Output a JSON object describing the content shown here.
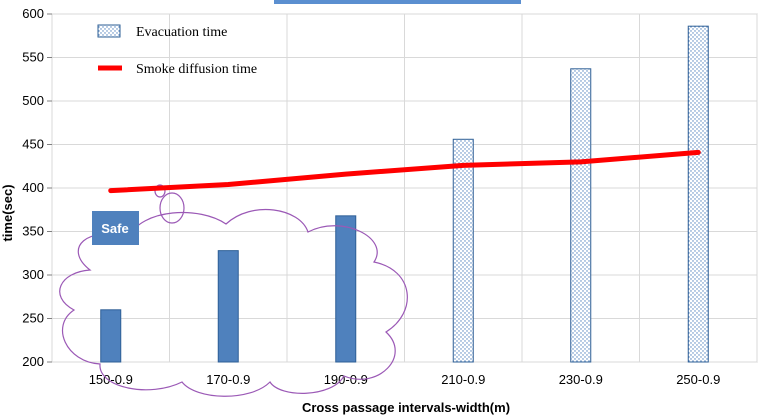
{
  "chart_data": {
    "type": "bar",
    "categories": [
      "150-0.9",
      "170-0.9",
      "190-0.9",
      "210-0.9",
      "230-0.9",
      "250-0.9"
    ],
    "series": [
      {
        "name": "Evacuation time",
        "kind": "bar",
        "values": [
          260,
          328,
          368,
          456,
          537,
          586
        ],
        "style": [
          "solid",
          "solid",
          "solid",
          "dotted",
          "dotted",
          "dotted"
        ]
      },
      {
        "name": "Smoke diffusion time",
        "kind": "line",
        "values": [
          397,
          404,
          416,
          426,
          430,
          441
        ]
      }
    ],
    "xlabel": "Cross passage intervals-width(m)",
    "ylabel": "time(sec)",
    "ylim": [
      200,
      600
    ],
    "yticks": [
      200,
      250,
      300,
      350,
      400,
      450,
      500,
      550,
      600
    ],
    "grid": true,
    "legend_position": "top-left",
    "annotations": [
      {
        "text": "Safe",
        "style": "cloud callout"
      }
    ],
    "colors": {
      "bar_fill": "#4f81bd",
      "bar_stroke": "#2e5f96",
      "bar_dotted_fill": "#ffffff",
      "line": "#ff0000",
      "callout_fill": "#4f81bd",
      "cloud_stroke": "#9b59b6",
      "grid": "#d9d9d9",
      "top_accent": "#5b8fd0"
    }
  }
}
